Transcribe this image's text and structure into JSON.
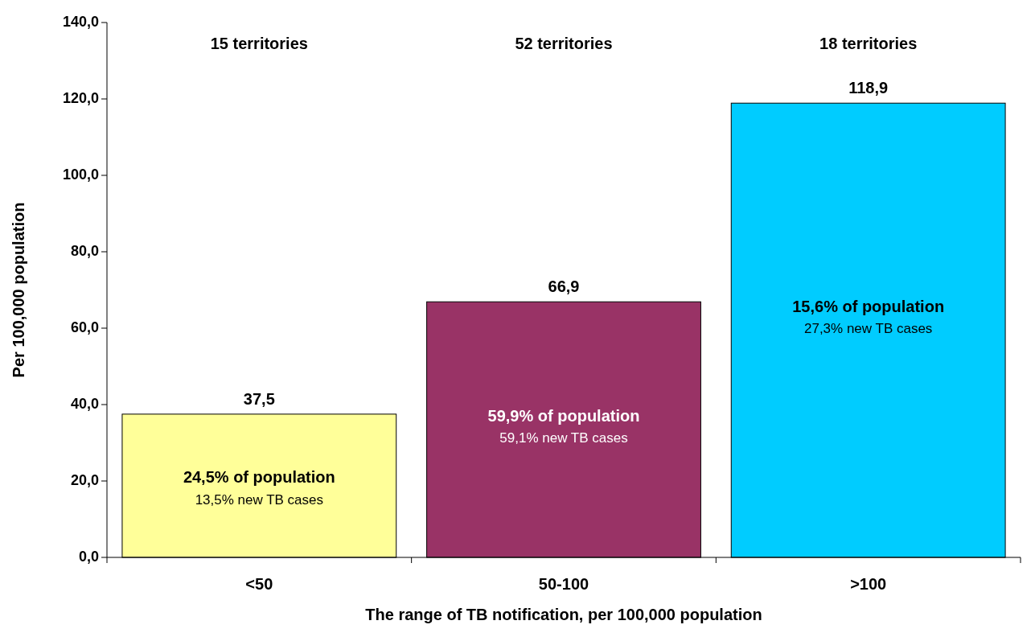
{
  "chart_data": {
    "type": "bar",
    "xlabel": "The range of TB notification, per 100,000 population",
    "ylabel": "Per 100,000 population",
    "categories": [
      "<50",
      "50-100",
      ">100"
    ],
    "values": [
      37.5,
      66.9,
      118.9
    ],
    "colors": [
      "#ffff99",
      "#993366",
      "#00ccff"
    ],
    "value_labels": [
      "37,5",
      "66,9",
      "118,9"
    ],
    "ylim": [
      0,
      140
    ],
    "yticks": [
      {
        "value": 0,
        "label": "0,0"
      },
      {
        "value": 20,
        "label": "20,0"
      },
      {
        "value": 40,
        "label": "40,0"
      },
      {
        "value": 60,
        "label": "60,0"
      },
      {
        "value": 80,
        "label": "80,0"
      },
      {
        "value": 100,
        "label": "100,0"
      },
      {
        "value": 120,
        "label": "120,0"
      },
      {
        "value": 140,
        "label": "140,0"
      }
    ],
    "grid": false,
    "annotations": [
      "15 territories",
      "52 territories",
      "18 territories",
      "24,5% of population",
      "13,5% new TB cases",
      "59,9% of population",
      "59,1% new TB cases",
      "15,6% of population",
      "27,3% new TB cases"
    ]
  }
}
